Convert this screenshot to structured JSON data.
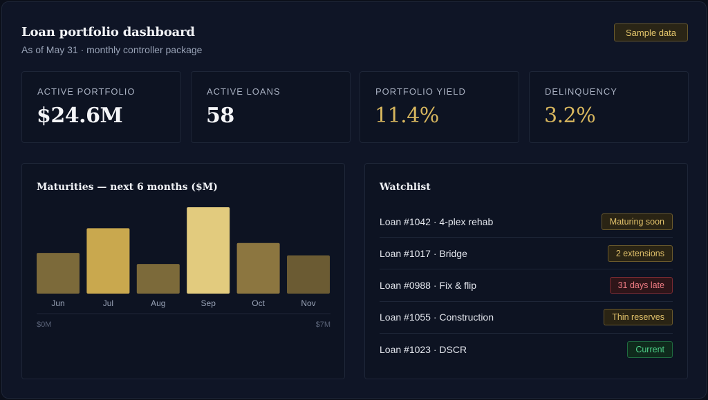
{
  "header": {
    "title": "Loan portfolio dashboard",
    "subtitle": "As of May 31 · monthly controller package",
    "badge": "Sample data"
  },
  "kpis": [
    {
      "label": "ACTIVE PORTFOLIO",
      "value": "$24.6M",
      "accent": false
    },
    {
      "label": "ACTIVE LOANS",
      "value": "58",
      "accent": false
    },
    {
      "label": "PORTFOLIO YIELD",
      "value": "11.4%",
      "accent": true
    },
    {
      "label": "DELINQUENCY",
      "value": "3.2%",
      "accent": true
    }
  ],
  "chart_panel": {
    "title": "Maturities — next 6 months ($M)"
  },
  "chart_data": {
    "type": "bar",
    "title": "Maturities — next 6 months ($M)",
    "categories": [
      "Jun",
      "Jul",
      "Aug",
      "Sep",
      "Oct",
      "Nov"
    ],
    "values": [
      3.3,
      5.3,
      2.4,
      7.0,
      4.1,
      3.1
    ],
    "ylim": [
      0,
      7
    ],
    "axis_labels": {
      "min": "$0M",
      "max": "$7M"
    },
    "colors": [
      "#7c6a3a",
      "#c9a84e",
      "#7c6a3a",
      "#e2cb7e",
      "#8c7640",
      "#6b5b33"
    ],
    "grid": false
  },
  "watchlist": {
    "title": "Watchlist",
    "items": [
      {
        "name": "Loan #1042 · 4-plex rehab",
        "status": "Maturing soon",
        "tone": "warn"
      },
      {
        "name": "Loan #1017 · Bridge",
        "status": "2 extensions",
        "tone": "warn"
      },
      {
        "name": "Loan #0988 · Fix & flip",
        "status": "31 days late",
        "tone": "red"
      },
      {
        "name": "Loan #1055 · Construction",
        "status": "Thin reserves",
        "tone": "warn"
      },
      {
        "name": "Loan #1023 · DSCR",
        "status": "Current",
        "tone": "green"
      }
    ]
  }
}
